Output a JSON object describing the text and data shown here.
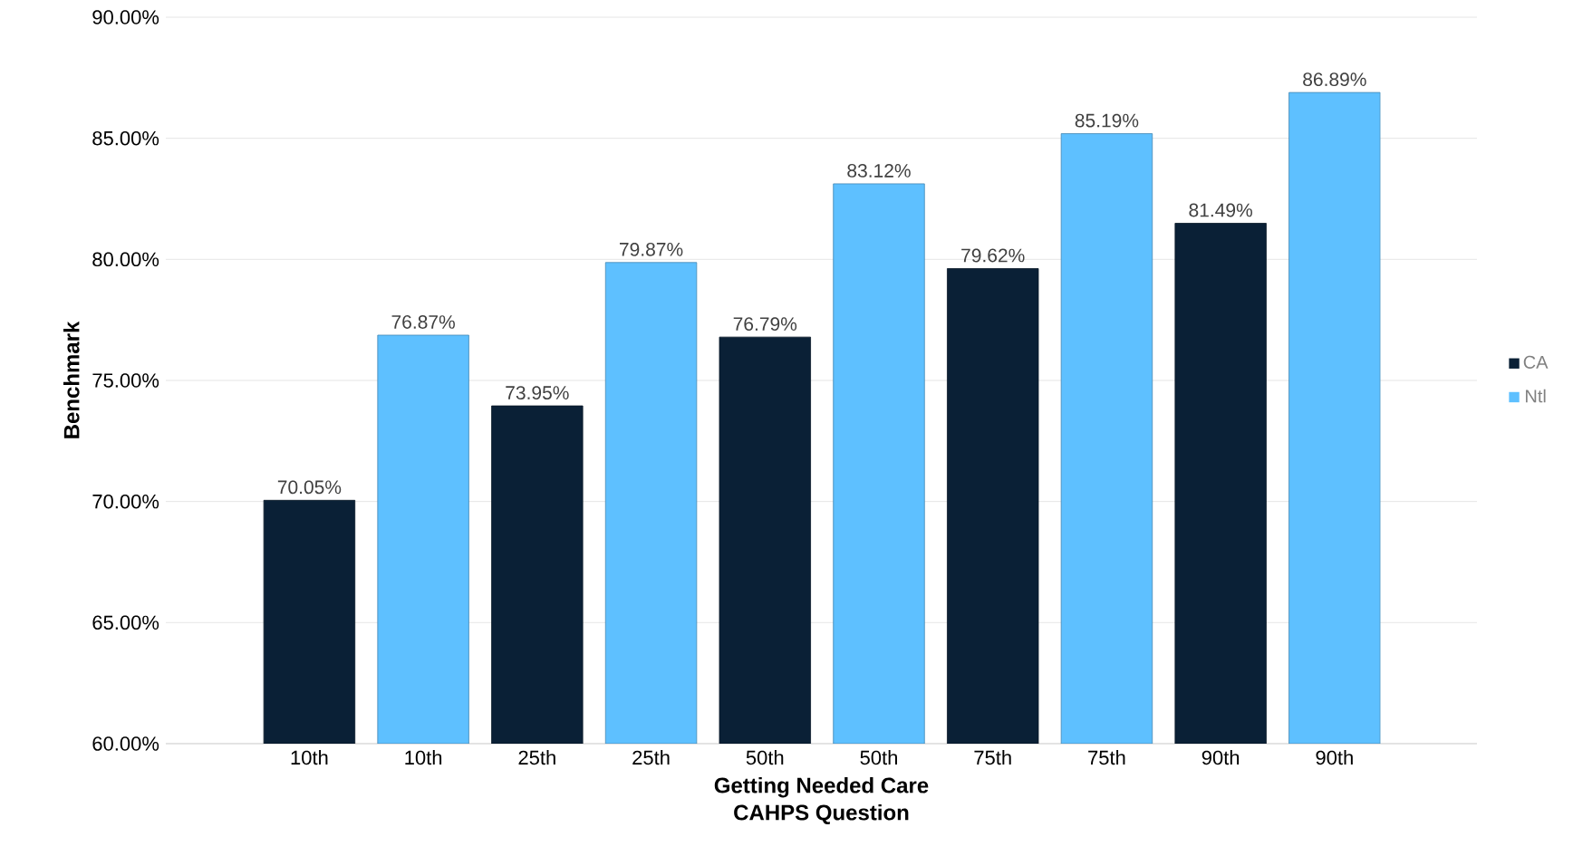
{
  "chart_data": {
    "type": "bar",
    "xlabel": "CAHPS Question",
    "ylabel": "Benchmark",
    "annotations": [
      "Getting Needed Care"
    ],
    "categories": [
      "10th",
      "10th",
      "25th",
      "25th",
      "50th",
      "50th",
      "75th",
      "75th",
      "90th",
      "90th"
    ],
    "series": [
      {
        "name": "CA",
        "color": "#0a2036",
        "values": [
          70.05,
          null,
          73.95,
          null,
          76.79,
          null,
          79.62,
          null,
          81.49,
          null
        ],
        "value_labels": [
          "70.05%",
          null,
          "73.95%",
          null,
          "76.79%",
          null,
          "79.62%",
          null,
          "81.49%",
          null
        ]
      },
      {
        "name": "Ntl",
        "color": "#5ec0ff",
        "values": [
          null,
          76.87,
          null,
          79.87,
          null,
          83.12,
          null,
          85.19,
          null,
          86.89
        ],
        "value_labels": [
          null,
          "76.87%",
          null,
          "79.87%",
          null,
          "83.12%",
          null,
          "85.19%",
          null,
          "86.89%"
        ]
      }
    ],
    "ylim": [
      60,
      90
    ],
    "yticks": [
      {
        "value": 60,
        "label": "60.00%"
      },
      {
        "value": 65,
        "label": "65.00%"
      },
      {
        "value": 70,
        "label": "70.00%"
      },
      {
        "value": 75,
        "label": "75.00%"
      },
      {
        "value": 80,
        "label": "80.00%"
      },
      {
        "value": 85,
        "label": "85.00%"
      },
      {
        "value": 90,
        "label": "90.00%"
      }
    ],
    "grid": "y",
    "legend": "right"
  }
}
